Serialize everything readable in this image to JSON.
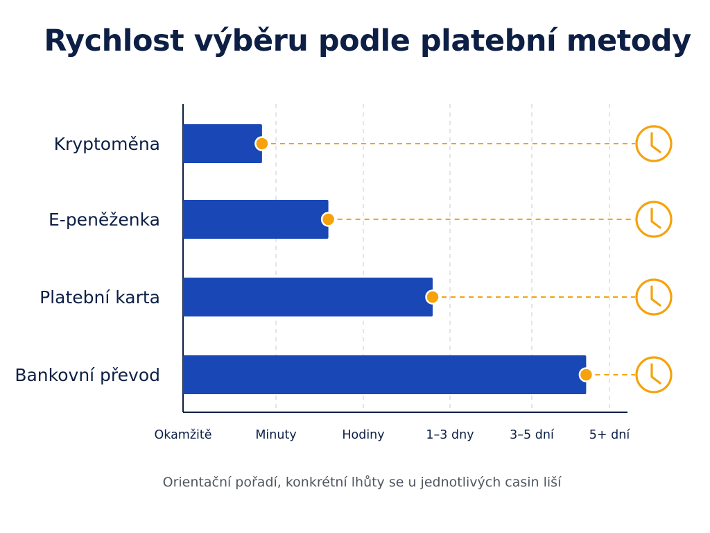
{
  "title": "Rychlost výběru podle platební metody",
  "footnote": "Orientační pořadí, konkrétní lhůty se u jednotlivých casin liší",
  "colors": {
    "bar": "#1a47b6",
    "marker": "#f5a20c",
    "title": "#0d1f45",
    "axis": "#0d1f45",
    "grid": "#d4d7dd"
  },
  "icons": {
    "end_marker": "clock-icon"
  },
  "chart_data": {
    "type": "bar",
    "orientation": "horizontal",
    "categories": [
      "Kryptoměna",
      "E-peněženka",
      "Platební karta",
      "Bankovní převod"
    ],
    "values": [
      0.85,
      1.6,
      2.8,
      4.7
    ],
    "x_ticks": [
      "Okamžitě",
      "Minuty",
      "Hodiny",
      "1–3 dny",
      "3–5 dní",
      "5+ dní"
    ],
    "x_tick_values": [
      0,
      1,
      2,
      3,
      4,
      5
    ],
    "xlim": [
      -0.1,
      5.2
    ],
    "grid": "vertical dashed"
  }
}
